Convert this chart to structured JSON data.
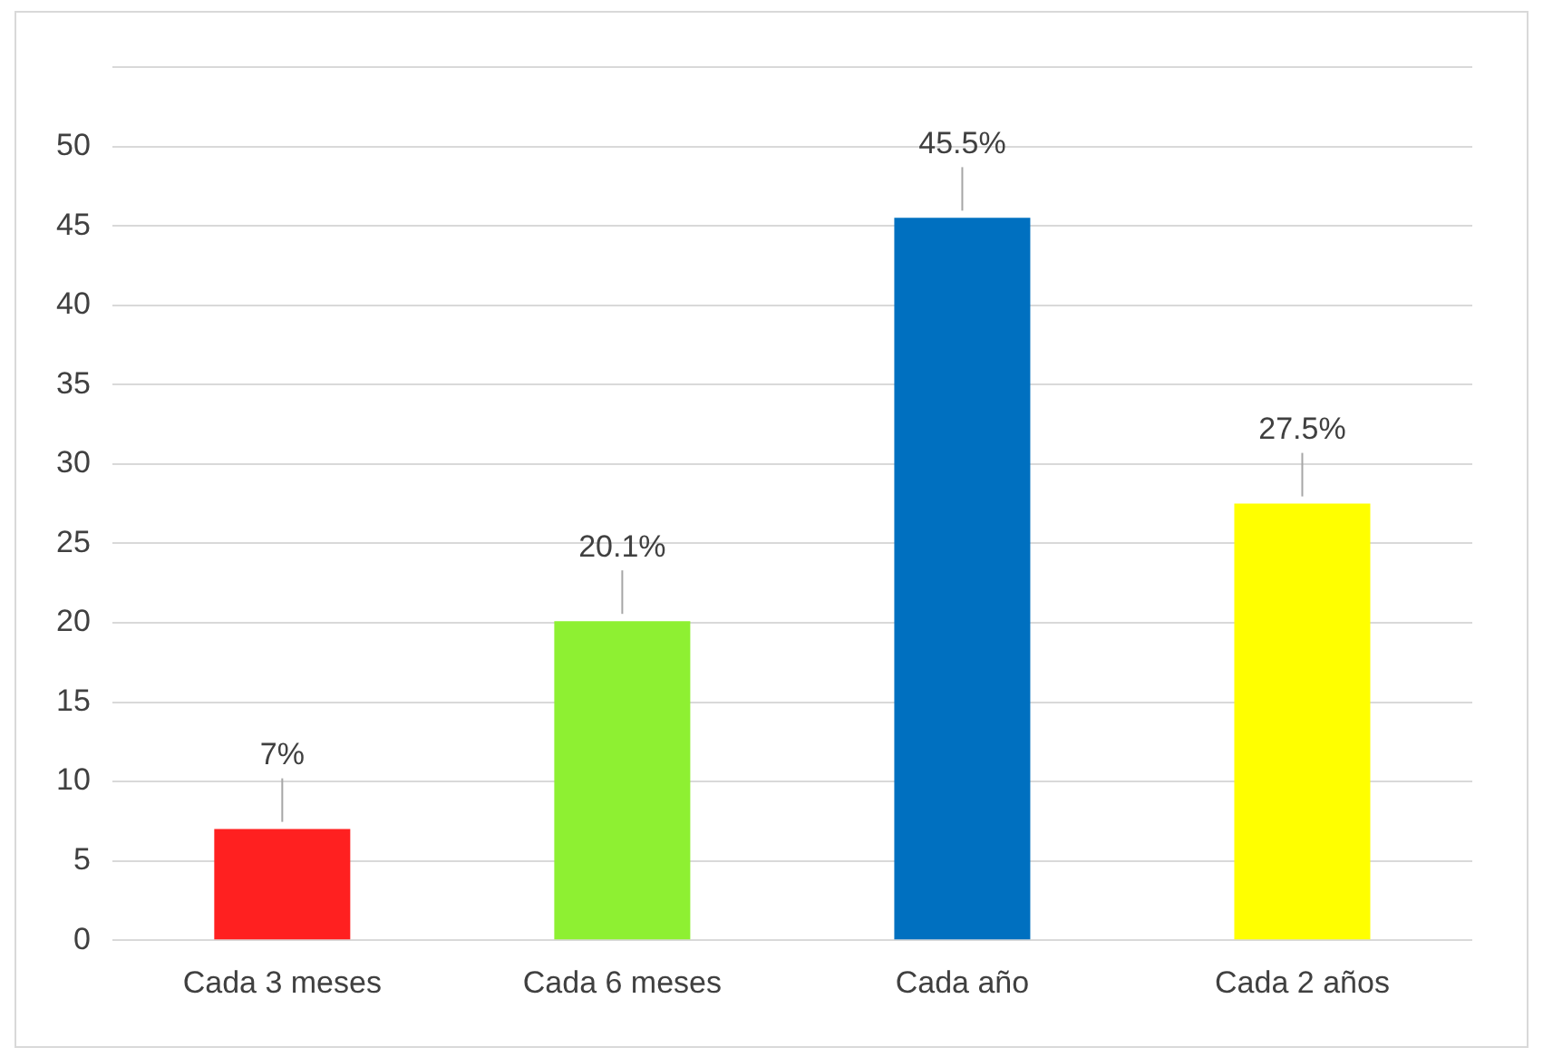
{
  "chart_data": {
    "type": "bar",
    "categories": [
      "Cada 3 meses",
      "Cada 6 meses",
      "Cada año",
      "Cada 2 años"
    ],
    "values": [
      7,
      20.1,
      45.5,
      27.5
    ],
    "colors": [
      "#ff2020",
      "#8ef032",
      "#0070c0",
      "#ffff00"
    ],
    "value_labels": [
      "7%",
      "20.1%",
      "45.5%",
      "27.5%"
    ],
    "ylim": [
      0,
      55
    ],
    "yticks": [
      0,
      5,
      10,
      15,
      20,
      25,
      30,
      35,
      40,
      45,
      50,
      {
        "value": 55,
        "label": null
      }
    ],
    "grid": "y"
  }
}
